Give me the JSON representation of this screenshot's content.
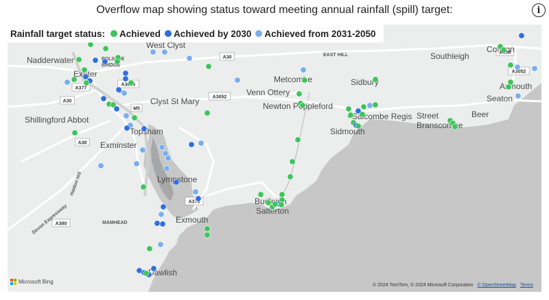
{
  "header": {
    "title": "Overflow map showing status toward meeting annual rainfall (spill) target:",
    "info_icon": "info-icon"
  },
  "legend": {
    "title": "Rainfall target status:",
    "items": [
      {
        "label": "Achieved",
        "color": "#3dc45a"
      },
      {
        "label": "Achieved by 2030",
        "color": "#2f6fde"
      },
      {
        "label": "Achieved from 2031-2050",
        "color": "#78aef0"
      }
    ]
  },
  "map": {
    "colors": {
      "sea": "#c7c7c7",
      "land": "#eceeed",
      "road": "#ffffff",
      "motorway": "#d9d9d9"
    },
    "places": [
      {
        "name": "West Clyst",
        "size": "lg"
      },
      {
        "name": "Nadderwater",
        "size": "lg"
      },
      {
        "name": "Exeter",
        "size": "lg"
      },
      {
        "name": "Metcombe",
        "size": "lg"
      },
      {
        "name": "Sidbury",
        "size": "lg"
      },
      {
        "name": "Southleigh",
        "size": "lg"
      },
      {
        "name": "Colyton",
        "size": "lg"
      },
      {
        "name": "Venn Ottery",
        "size": "lg"
      },
      {
        "name": "Clyst St Mary",
        "size": "lg"
      },
      {
        "name": "Newton Poppleford",
        "size": "lg"
      },
      {
        "name": "Salcombe Regis",
        "size": "lg"
      },
      {
        "name": "Street",
        "size": "lg"
      },
      {
        "name": "Branscombe",
        "size": "lg"
      },
      {
        "name": "Beer",
        "size": "lg"
      },
      {
        "name": "Seaton",
        "size": "lg"
      },
      {
        "name": "Axmouth",
        "size": "lg"
      },
      {
        "name": "Shillingford Abbot",
        "size": "lg"
      },
      {
        "name": "Topsham",
        "size": "lg"
      },
      {
        "name": "Exminster",
        "size": "lg"
      },
      {
        "name": "Sidmouth",
        "size": "lg"
      },
      {
        "name": "Lympstone",
        "size": "lg"
      },
      {
        "name": "Budleigh",
        "size": "lg"
      },
      {
        "name": "Salterton",
        "size": "lg"
      },
      {
        "name": "Exmouth",
        "size": "lg"
      },
      {
        "name": "Dawlish",
        "size": "lg"
      },
      {
        "name": "EAST HILL",
        "size": "sm"
      },
      {
        "name": "MAMHEAD",
        "size": "sm"
      },
      {
        "name": "POLSLOE",
        "size": "sm"
      },
      {
        "name": "BRIDGE",
        "size": "sm"
      },
      {
        "name": "Haldon Hill",
        "size": "sm"
      },
      {
        "name": "Devon Expressway",
        "size": "sm"
      }
    ],
    "roads": [
      "A30",
      "A3015",
      "A3052",
      "A30",
      "M5",
      "A38",
      "A376",
      "A380",
      "A358",
      "A3052",
      "A377"
    ]
  },
  "attribution": {
    "provider": "Microsoft Bing",
    "copyright": "© 2024 TomTom, © 2024 Microsoft Corporation",
    "osm": "© OpenStreetMap",
    "terms": "Terms"
  }
}
